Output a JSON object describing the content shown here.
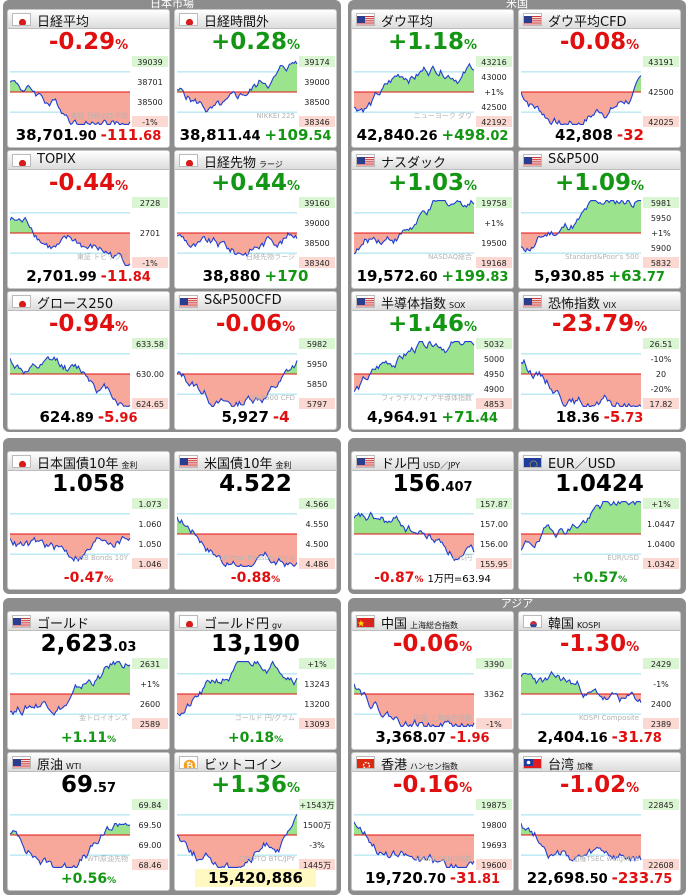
{
  "sections": [
    {
      "title": "日本市場"
    },
    {
      "title": "米国"
    },
    {
      "title": ""
    },
    {
      "title": ""
    },
    {
      "title": ""
    },
    {
      "title": "アジア"
    }
  ],
  "tiles": [
    {
      "name": "日経平均",
      "flag": "jp",
      "change": "-0.29",
      "dir": "dn",
      "p1": "38,701",
      "p2": ".90",
      "d1": "-111",
      "d2": ".68",
      "ticks": [
        "39039",
        "38701",
        "38500",
        "-1%"
      ],
      "wm": "東証 日経225平均",
      "seed": 1,
      "trend": -1
    },
    {
      "name": "日経時間外",
      "flag": "jp",
      "change": "+0.28",
      "dir": "up",
      "p1": "38,811",
      "p2": ".44",
      "d1": "+109",
      "d2": ".54",
      "ticks": [
        "39174",
        "39000",
        "38500",
        "38346"
      ],
      "wm": "NIKKEI 225",
      "seed": 2,
      "trend": 0
    },
    {
      "name": "ダウ平均",
      "flag": "us",
      "change": "+1.18",
      "dir": "up",
      "p1": "42,840",
      "p2": ".26",
      "d1": "+498",
      "d2": ".02",
      "ticks": [
        "43216",
        "43000",
        "+1%",
        "42500",
        "42192"
      ],
      "wm": "ニューヨーク ダウ",
      "seed": 3,
      "trend": 1
    },
    {
      "name": "ダウ平均CFD",
      "flag": "us",
      "change": "-0.08",
      "dir": "dn",
      "p1": "42,808",
      "p2": "",
      "d1": "-32",
      "d2": "",
      "ticks": [
        "43191",
        "42500",
        "42025"
      ],
      "wm": "",
      "seed": 4,
      "trend": 0
    },
    {
      "name": "TOPIX",
      "flag": "jp",
      "change": "-0.44",
      "dir": "dn",
      "p1": "2,701",
      "p2": ".99",
      "d1": "-11",
      "d2": ".84",
      "ticks": [
        "2728",
        "2701",
        "-1%"
      ],
      "wm": "東証 トピックス",
      "seed": 5,
      "trend": -1
    },
    {
      "name": "日経先物",
      "sub": "ラージ",
      "flag": "jp",
      "change": "+0.44",
      "dir": "up",
      "p1": "38,880",
      "p2": "",
      "d1": "+170",
      "d2": "",
      "ticks": [
        "39160",
        "39000",
        "38500",
        "38340"
      ],
      "wm": "日経先物ラージ",
      "seed": 6,
      "trend": 0
    },
    {
      "name": "ナスダック",
      "flag": "us",
      "change": "+1.03",
      "dir": "up",
      "p1": "19,572",
      "p2": ".60",
      "d1": "+199",
      "d2": ".83",
      "ticks": [
        "19758",
        "+1%",
        "19500",
        "19168"
      ],
      "wm": "NASDAQ総合",
      "seed": 7,
      "trend": 1
    },
    {
      "name": "S&P500",
      "flag": "us",
      "change": "+1.09",
      "dir": "up",
      "p1": "5,930",
      "p2": ".85",
      "d1": "+63",
      "d2": ".77",
      "ticks": [
        "5981",
        "5950",
        "+1%",
        "5900",
        "5832"
      ],
      "wm": "Standard&Poor's 500",
      "seed": 8,
      "trend": 1
    },
    {
      "name": "グロース250",
      "flag": "jp",
      "change": "-0.94",
      "dir": "dn",
      "p1": "624",
      "p2": ".89",
      "d1": "-5",
      "d2": ".96",
      "ticks": [
        "633.58",
        "630.00",
        "624.65"
      ],
      "wm": "",
      "seed": 9,
      "trend": -1
    },
    {
      "name": "S&P500CFD",
      "flag": "us",
      "change": "-0.06",
      "dir": "dn",
      "p1": "5,927",
      "p2": "",
      "d1": "-4",
      "d2": "",
      "ticks": [
        "5982",
        "5950",
        "5850",
        "5797"
      ],
      "wm": "S&P500 CFD",
      "seed": 10,
      "trend": 0
    },
    {
      "name": "半導体指数",
      "sub": "SOX",
      "flag": "us",
      "change": "+1.46",
      "dir": "up",
      "p1": "4,964",
      "p2": ".91",
      "d1": "+71",
      "d2": ".44",
      "ticks": [
        "5032",
        "5000",
        "4950",
        "4900",
        "4853"
      ],
      "wm": "フィラデルフィア半導体指数",
      "seed": 11,
      "trend": 1
    },
    {
      "name": "恐怖指数",
      "sub": "VIX",
      "flag": "us",
      "change": "-23.79",
      "dir": "dn",
      "p1": "18",
      "p2": ".36",
      "d1": "-5",
      "d2": ".73",
      "ticks": [
        "26.51",
        "-10%",
        "20",
        "-20%",
        "17.82"
      ],
      "wm": "",
      "seed": 12,
      "trend": -1
    },
    {
      "name": "日本国債10年",
      "sub": "金利",
      "flag": "jp",
      "price": "1.058",
      "pc": "",
      "change2": "-0.47",
      "dir": "dn",
      "ticks": [
        "1.073",
        "1.060",
        "1.050",
        "1.046"
      ],
      "wm": "JGB Bonds 10Y",
      "seed": 13,
      "trend": 0,
      "extra": ""
    },
    {
      "name": "米国債10年",
      "sub": "金利",
      "flag": "us",
      "price": "4.522",
      "pc": "",
      "change2": "-0.88",
      "dir": "dn",
      "ticks": [
        "4.566",
        "4.550",
        "4.500",
        "4.486"
      ],
      "wm": "10-Year Treasury Yield",
      "seed": 14,
      "trend": -1,
      "extra": ""
    },
    {
      "name": "ドル円",
      "sub": "USD／JPY",
      "flag": "us",
      "price": "156",
      "pc": ".407",
      "change2": "-0.87",
      "dir": "dn",
      "ticks": [
        "157.87",
        "157.00",
        "156.00",
        "155.95"
      ],
      "wm": "ドル円",
      "seed": 15,
      "trend": -1,
      "extra": "1万円=63.94"
    },
    {
      "name": "EUR／USD",
      "flag": "eu",
      "price": "1.0424",
      "pc": "",
      "change2": "+0.57",
      "dir": "up",
      "ticks": [
        "+1%",
        "1.0447",
        "1.0400",
        "1.0342"
      ],
      "wm": "EUR/USD",
      "seed": 16,
      "trend": 1,
      "extra": ""
    },
    {
      "name": "ゴールド",
      "flag": "us",
      "price": "2,623",
      "pc": ".03",
      "change2": "+1.11",
      "dir": "up",
      "ticks": [
        "2631",
        "+1%",
        "2600",
        "2589"
      ],
      "wm": "金トロイオンス",
      "seed": 17,
      "trend": 1,
      "extra": ""
    },
    {
      "name": "ゴールド円",
      "sub": "gv",
      "flag": "jp",
      "price": "13,190",
      "pc": "",
      "change2": "+0.18",
      "dir": "up",
      "ticks": [
        "+1%",
        "13243",
        "13200",
        "13093"
      ],
      "wm": "ゴールド 円/グラム",
      "seed": 18,
      "trend": 1,
      "extra": ""
    },
    {
      "name": "中国",
      "sub": "上海総合指数",
      "flag": "cn",
      "change": "-0.06",
      "dir": "dn",
      "p1": "3,368",
      "p2": ".07",
      "d1": "-1",
      "d2": ".96",
      "ticks": [
        "3390",
        "3362",
        "-1%"
      ],
      "wm": "中国 上海総合指数",
      "seed": 19,
      "trend": -1
    },
    {
      "name": "韓国",
      "sub": "KOSPI",
      "flag": "kr",
      "change": "-1.30",
      "dir": "dn",
      "p1": "2,404",
      "p2": ".16",
      "d1": "-31",
      "d2": ".78",
      "ticks": [
        "2429",
        "-1%",
        "2400",
        "2389"
      ],
      "wm": "KOSPI Composite",
      "seed": 20,
      "trend": -1
    },
    {
      "name": "原油",
      "sub": "WTI",
      "flag": "us",
      "price": "69",
      "pc": ".57",
      "change2": "+0.56",
      "dir": "up",
      "ticks": [
        "69.84",
        "69.50",
        "69.00",
        "68.46"
      ],
      "wm": "WTI原油先物",
      "seed": 21,
      "trend": 0,
      "extra": ""
    },
    {
      "name": "ビットコイン",
      "flag": "btc",
      "change": "+1.36",
      "dir": "up",
      "price2": "15,420,886",
      "ticks": [
        "+1543万",
        "1500万",
        "-3%",
        "1445万"
      ],
      "wm": "CRYPTO BTC/JPY",
      "seed": 22,
      "trend": 0
    },
    {
      "name": "香港",
      "sub": "ハンセン指数",
      "flag": "hk",
      "change": "-0.16",
      "dir": "dn",
      "p1": "19,720",
      "p2": ".70",
      "d1": "-31",
      "d2": ".81",
      "ticks": [
        "19875",
        "19800",
        "19693",
        "19600"
      ],
      "wm": "HANG SENG指数",
      "seed": 23,
      "trend": -1
    },
    {
      "name": "台湾",
      "sub": "加権",
      "flag": "tw",
      "change": "-1.02",
      "dir": "dn",
      "p1": "22,698",
      "p2": ".50",
      "d1": "-233",
      "d2": ".75",
      "ticks": [
        "22845",
        "22608"
      ],
      "wm": "加権TSEC weighted",
      "seed": 24,
      "trend": -1
    }
  ],
  "colors": {
    "up": "#139613",
    "down": "#e01010",
    "fill_up": "#9be38d",
    "fill_dn": "#f7a89a",
    "panel": "#8d8d8d"
  }
}
